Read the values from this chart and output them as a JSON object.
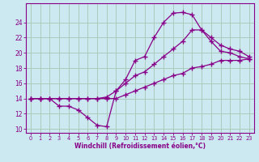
{
  "xlabel": "Windchill (Refroidissement éolien,°C)",
  "bg_color": "#cce8f0",
  "grid_color": "#aaccbb",
  "line_color": "#880088",
  "xlim": [
    -0.5,
    23.5
  ],
  "ylim": [
    9.5,
    26.5
  ],
  "xticks": [
    0,
    1,
    2,
    3,
    4,
    5,
    6,
    7,
    8,
    9,
    10,
    11,
    12,
    13,
    14,
    15,
    16,
    17,
    18,
    19,
    20,
    21,
    22,
    23
  ],
  "yticks": [
    10,
    12,
    14,
    16,
    18,
    20,
    22,
    24
  ],
  "series1_x": [
    0,
    1,
    2,
    3,
    4,
    5,
    6,
    7,
    8,
    9,
    10,
    11,
    12,
    13,
    14,
    15,
    16,
    17,
    18,
    19,
    20,
    21,
    22,
    23
  ],
  "series1_y": [
    14.0,
    14.0,
    14.0,
    13.0,
    13.0,
    12.5,
    11.5,
    10.5,
    10.3,
    15.0,
    16.5,
    19.0,
    19.5,
    22.0,
    24.0,
    25.2,
    25.3,
    25.0,
    23.0,
    21.5,
    20.2,
    20.0,
    19.5,
    19.2
  ],
  "series2_x": [
    0,
    1,
    2,
    3,
    4,
    5,
    6,
    7,
    8,
    9,
    10,
    11,
    12,
    13,
    14,
    15,
    16,
    17,
    18,
    19,
    20,
    21,
    22,
    23
  ],
  "series2_y": [
    14.0,
    14.0,
    14.0,
    14.0,
    14.0,
    14.0,
    14.0,
    14.0,
    14.0,
    14.0,
    14.5,
    15.0,
    15.5,
    16.0,
    16.5,
    17.0,
    17.3,
    18.0,
    18.2,
    18.5,
    19.0,
    19.0,
    19.0,
    19.2
  ],
  "series3_x": [
    0,
    1,
    2,
    3,
    4,
    5,
    6,
    7,
    8,
    9,
    10,
    11,
    12,
    13,
    14,
    15,
    16,
    17,
    18,
    19,
    20,
    21,
    22,
    23
  ],
  "series3_y": [
    14.0,
    14.0,
    14.0,
    14.0,
    14.0,
    14.0,
    14.0,
    14.0,
    14.2,
    15.0,
    16.0,
    17.0,
    17.5,
    18.5,
    19.5,
    20.5,
    21.5,
    23.0,
    23.0,
    22.0,
    21.0,
    20.5,
    20.2,
    19.5
  ]
}
